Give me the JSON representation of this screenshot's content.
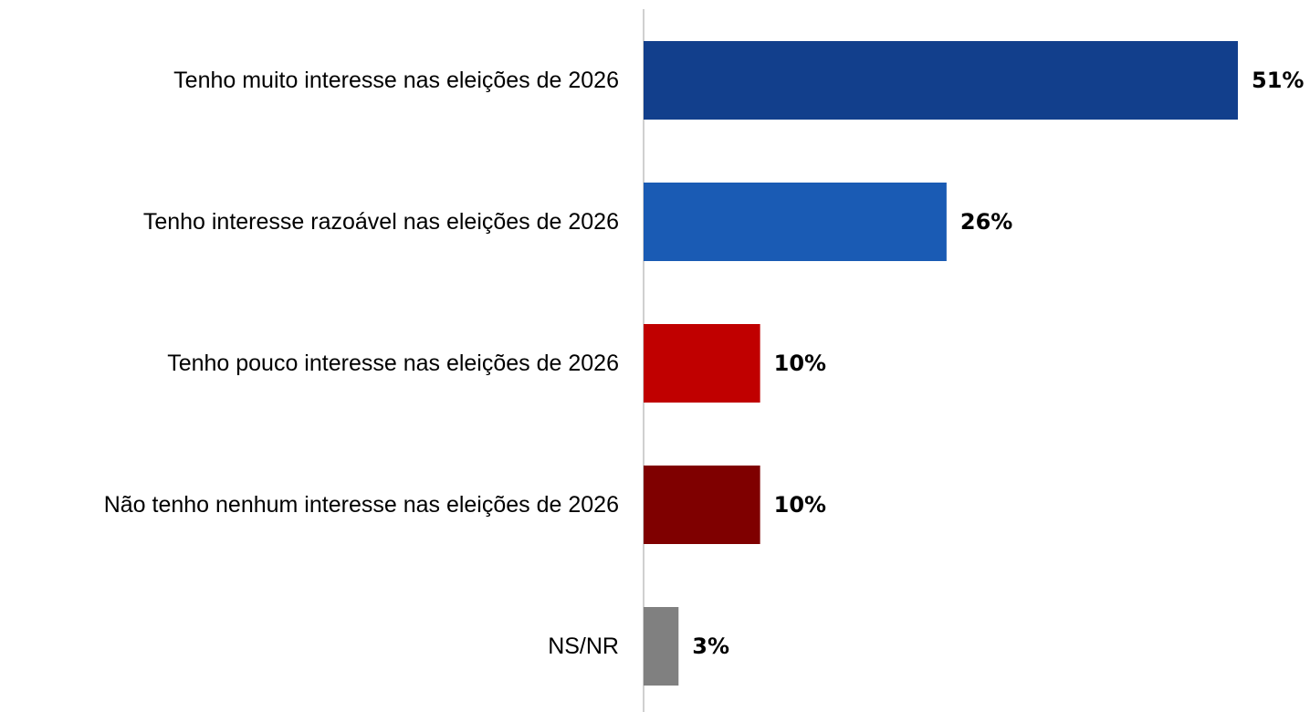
{
  "chart_data": {
    "type": "bar",
    "orientation": "horizontal",
    "title": "",
    "xlabel": "",
    "ylabel": "",
    "categories": [
      "Tenho muito interesse nas eleições de 2026",
      "Tenho interesse razoável nas eleições de 2026",
      "Tenho pouco interesse nas eleições de 2026",
      "Não tenho nenhum interesse nas eleições de 2026",
      "NS/NR"
    ],
    "values": [
      51,
      26,
      10,
      10,
      3
    ],
    "value_labels": [
      "51%",
      "26%",
      "10%",
      "10%",
      "3%"
    ],
    "colors": [
      "#123f8c",
      "#1a5bb4",
      "#c00000",
      "#7f0000",
      "#808080"
    ],
    "xlim": [
      0,
      51
    ],
    "grid": false,
    "legend": "none"
  }
}
